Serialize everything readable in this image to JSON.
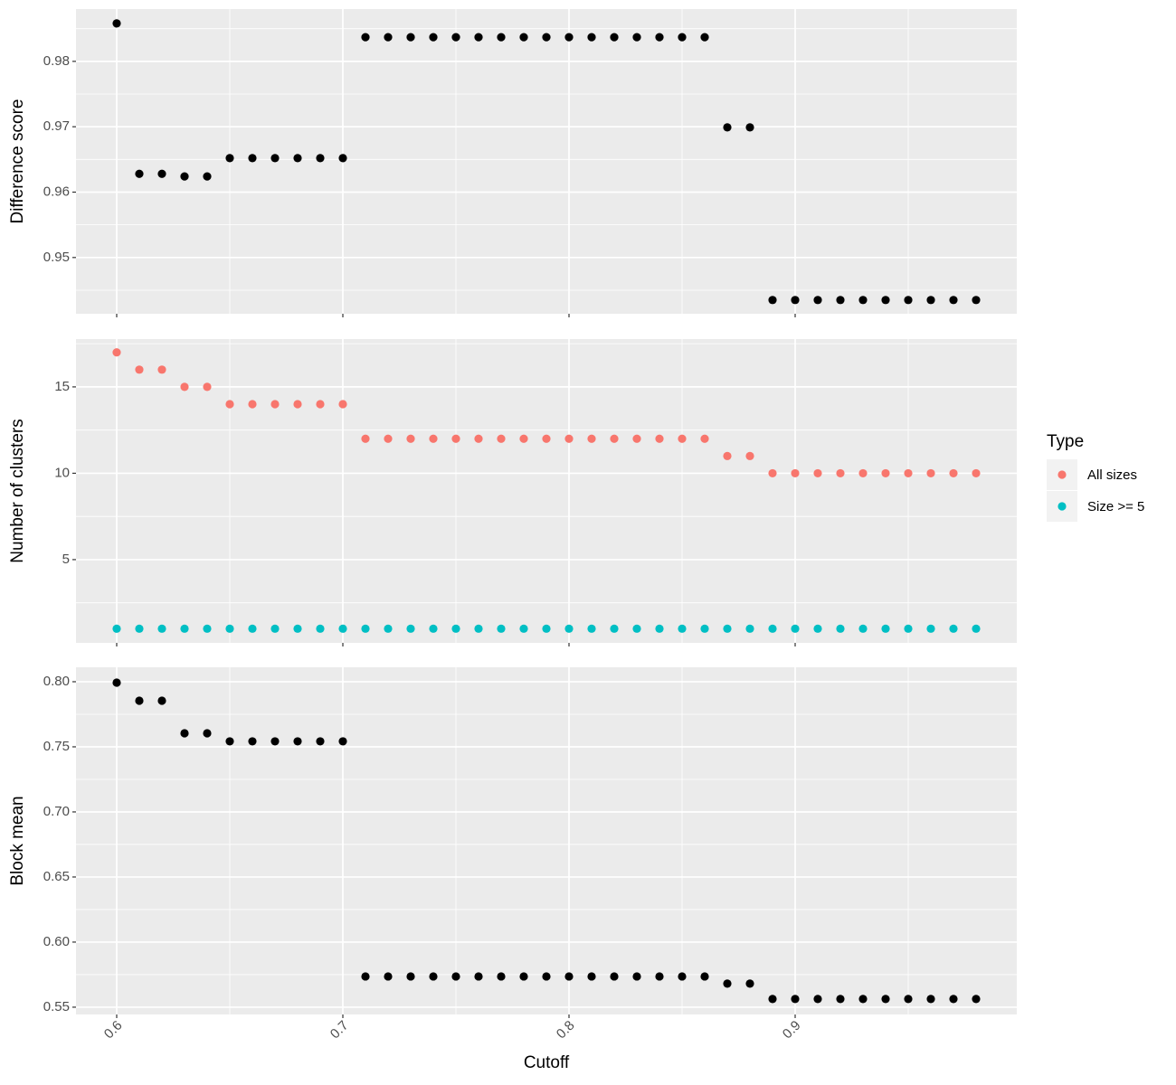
{
  "chart_data": [
    {
      "type": "scatter",
      "ylabel": "Difference score",
      "x": [
        0.6,
        0.61,
        0.62,
        0.63,
        0.64,
        0.65,
        0.66,
        0.67,
        0.68,
        0.69,
        0.7,
        0.71,
        0.72,
        0.73,
        0.74,
        0.75,
        0.76,
        0.77,
        0.78,
        0.79,
        0.8,
        0.81,
        0.82,
        0.83,
        0.84,
        0.85,
        0.86,
        0.87,
        0.88,
        0.89,
        0.9,
        0.91,
        0.92,
        0.93,
        0.94,
        0.95,
        0.96,
        0.97,
        0.98
      ],
      "values": [
        0.9858,
        0.9628,
        0.9628,
        0.9624,
        0.9624,
        0.9652,
        0.9652,
        0.9652,
        0.9652,
        0.9652,
        0.9652,
        0.9837,
        0.9837,
        0.9837,
        0.9837,
        0.9837,
        0.9837,
        0.9837,
        0.9837,
        0.9837,
        0.9837,
        0.9837,
        0.9837,
        0.9837,
        0.9837,
        0.9837,
        0.9837,
        0.9699,
        0.9699,
        0.9435,
        0.9435,
        0.9435,
        0.9435,
        0.9435,
        0.9435,
        0.9435,
        0.9435,
        0.9435,
        0.9435
      ],
      "color": "#000000",
      "xlim": [
        0.582,
        0.998
      ],
      "xticks": [
        0.6,
        0.7,
        0.8,
        0.9
      ],
      "ylim": [
        0.9414,
        0.988
      ],
      "yticks": [
        0.95,
        0.96,
        0.97,
        0.98
      ],
      "grid": true
    },
    {
      "type": "scatter",
      "ylabel": "Number of clusters",
      "legend_title": "Type",
      "legend": "right",
      "x": [
        0.6,
        0.61,
        0.62,
        0.63,
        0.64,
        0.65,
        0.66,
        0.67,
        0.68,
        0.69,
        0.7,
        0.71,
        0.72,
        0.73,
        0.74,
        0.75,
        0.76,
        0.77,
        0.78,
        0.79,
        0.8,
        0.81,
        0.82,
        0.83,
        0.84,
        0.85,
        0.86,
        0.87,
        0.88,
        0.89,
        0.9,
        0.91,
        0.92,
        0.93,
        0.94,
        0.95,
        0.96,
        0.97,
        0.98
      ],
      "series": [
        {
          "name": "All sizes",
          "color": "#F8766D",
          "values": [
            17,
            16,
            16,
            15,
            15,
            14,
            14,
            14,
            14,
            14,
            14,
            12,
            12,
            12,
            12,
            12,
            12,
            12,
            12,
            12,
            12,
            12,
            12,
            12,
            12,
            12,
            12,
            11,
            11,
            10,
            10,
            10,
            10,
            10,
            10,
            10,
            10,
            10,
            10
          ]
        },
        {
          "name": "Size >= 5",
          "color": "#00BFC4",
          "values": [
            1,
            1,
            1,
            1,
            1,
            1,
            1,
            1,
            1,
            1,
            1,
            1,
            1,
            1,
            1,
            1,
            1,
            1,
            1,
            1,
            1,
            1,
            1,
            1,
            1,
            1,
            1,
            1,
            1,
            1,
            1,
            1,
            1,
            1,
            1,
            1,
            1,
            1,
            1
          ]
        }
      ],
      "xlim": [
        0.582,
        0.998
      ],
      "xticks": [
        0.6,
        0.7,
        0.8,
        0.9
      ],
      "ylim": [
        0.18,
        17.77
      ],
      "yticks": [
        5,
        10,
        15
      ],
      "grid": true
    },
    {
      "type": "scatter",
      "ylabel": "Block mean",
      "xlabel": "Cutoff",
      "x": [
        0.6,
        0.61,
        0.62,
        0.63,
        0.64,
        0.65,
        0.66,
        0.67,
        0.68,
        0.69,
        0.7,
        0.71,
        0.72,
        0.73,
        0.74,
        0.75,
        0.76,
        0.77,
        0.78,
        0.79,
        0.8,
        0.81,
        0.82,
        0.83,
        0.84,
        0.85,
        0.86,
        0.87,
        0.88,
        0.89,
        0.9,
        0.91,
        0.92,
        0.93,
        0.94,
        0.95,
        0.96,
        0.97,
        0.98
      ],
      "values": [
        0.7993,
        0.7854,
        0.7854,
        0.7604,
        0.7604,
        0.7542,
        0.7542,
        0.7542,
        0.7542,
        0.7542,
        0.7542,
        0.5736,
        0.5736,
        0.5736,
        0.5736,
        0.5736,
        0.5736,
        0.5736,
        0.5736,
        0.5736,
        0.5736,
        0.5736,
        0.5736,
        0.5736,
        0.5736,
        0.5736,
        0.5736,
        0.5681,
        0.5681,
        0.5563,
        0.5563,
        0.5563,
        0.5563,
        0.5563,
        0.5563,
        0.5563,
        0.5563,
        0.5563,
        0.5563
      ],
      "color": "#000000",
      "xlim": [
        0.582,
        0.998
      ],
      "xticks": [
        0.6,
        0.7,
        0.8,
        0.9
      ],
      "ylim": [
        0.5444,
        0.8111
      ],
      "yticks": [
        {
          "value": 0.55,
          "label": "0.55"
        },
        {
          "value": 0.6,
          "label": "0.60"
        },
        {
          "value": 0.65,
          "label": "0.65"
        },
        {
          "value": 0.7,
          "label": "0.70"
        },
        {
          "value": 0.75,
          "label": "0.75"
        },
        {
          "value": 0.8,
          "label": "0.80"
        }
      ],
      "grid": true
    }
  ]
}
